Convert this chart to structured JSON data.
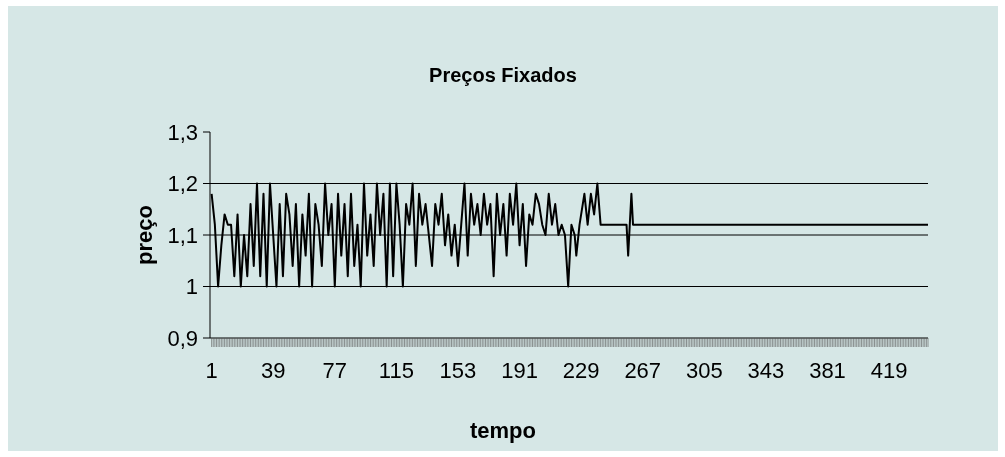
{
  "chart_data": {
    "type": "line",
    "title": "Preços Fixados",
    "xlabel": "tempo",
    "ylabel": "preço",
    "x": [
      1,
      3,
      5,
      7,
      9,
      11,
      13,
      15,
      17,
      19,
      21,
      23,
      25,
      27,
      29,
      31,
      33,
      35,
      37,
      39,
      41,
      43,
      45,
      47,
      49,
      51,
      53,
      55,
      57,
      59,
      61,
      63,
      65,
      67,
      69,
      71,
      73,
      75,
      77,
      79,
      81,
      83,
      85,
      87,
      89,
      91,
      93,
      95,
      97,
      99,
      101,
      103,
      105,
      107,
      109,
      111,
      113,
      115,
      117,
      119,
      121,
      123,
      125,
      127,
      129,
      131,
      133,
      135,
      137,
      139,
      141,
      143,
      145,
      147,
      149,
      151,
      153,
      155,
      157,
      159,
      161,
      163,
      165,
      167,
      169,
      171,
      173,
      175,
      177,
      179,
      181,
      183,
      185,
      187,
      189,
      191,
      193,
      195,
      197,
      199,
      201,
      203,
      205,
      207,
      209,
      211,
      213,
      215,
      217,
      219,
      221,
      223,
      225,
      226,
      228,
      231,
      233,
      235,
      237,
      239,
      241,
      257,
      258,
      260,
      261,
      443
    ],
    "series": [
      {
        "color": "#000000",
        "values": [
          1.18,
          1.12,
          1.0,
          1.08,
          1.14,
          1.12,
          1.12,
          1.02,
          1.14,
          1.0,
          1.1,
          1.02,
          1.16,
          1.04,
          1.2,
          1.02,
          1.18,
          1.0,
          1.2,
          1.1,
          1.0,
          1.16,
          1.02,
          1.18,
          1.14,
          1.04,
          1.16,
          1.0,
          1.14,
          1.06,
          1.18,
          1.0,
          1.16,
          1.12,
          1.04,
          1.2,
          1.1,
          1.16,
          1.0,
          1.18,
          1.06,
          1.16,
          1.02,
          1.18,
          1.04,
          1.12,
          1.0,
          1.2,
          1.06,
          1.14,
          1.04,
          1.2,
          1.1,
          1.18,
          1.0,
          1.2,
          1.02,
          1.2,
          1.12,
          1.0,
          1.16,
          1.12,
          1.2,
          1.04,
          1.18,
          1.12,
          1.16,
          1.1,
          1.04,
          1.16,
          1.12,
          1.18,
          1.08,
          1.14,
          1.06,
          1.12,
          1.04,
          1.12,
          1.2,
          1.06,
          1.18,
          1.12,
          1.16,
          1.1,
          1.18,
          1.12,
          1.16,
          1.02,
          1.18,
          1.1,
          1.16,
          1.06,
          1.18,
          1.12,
          1.2,
          1.08,
          1.16,
          1.04,
          1.14,
          1.12,
          1.18,
          1.16,
          1.12,
          1.1,
          1.18,
          1.12,
          1.16,
          1.1,
          1.12,
          1.1,
          1.0,
          1.12,
          1.1,
          1.06,
          1.12,
          1.18,
          1.12,
          1.18,
          1.14,
          1.2,
          1.12,
          1.12,
          1.06,
          1.18,
          1.12,
          1.12
        ]
      }
    ],
    "xlim": [
      0,
      443
    ],
    "xticks": [
      1,
      39,
      77,
      115,
      153,
      191,
      229,
      267,
      305,
      343,
      381,
      419
    ],
    "ylim": [
      0.9,
      1.3
    ],
    "yticks": [
      {
        "value": 0.9,
        "label": "0,9"
      },
      1,
      {
        "value": 1.1,
        "label": "1,1"
      },
      {
        "value": 1.2,
        "label": "1,2"
      },
      {
        "value": 1.3,
        "label": "1,3"
      }
    ],
    "grid": "y",
    "marker": "none",
    "line_style": "solid"
  }
}
